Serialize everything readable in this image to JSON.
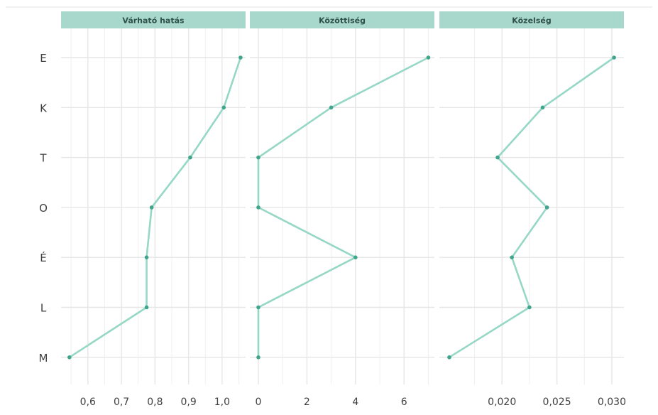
{
  "colors": {
    "strip_bg": "#a8d8cc",
    "line": "#96d7c6",
    "point": "#3fa58c",
    "grid": "#e6e6e6",
    "tick_text": "#404040",
    "strip_text": "#2f4f4a"
  },
  "chart_data": {
    "type": "line",
    "layout": "facet-columns",
    "categories": [
      "E",
      "K",
      "T",
      "O",
      "É",
      "L",
      "M"
    ],
    "grid": true,
    "facets": [
      {
        "title": "Várható hatás",
        "xlim": [
          0.52,
          1.07
        ],
        "xticks": [
          0.6,
          0.7,
          0.8,
          0.9,
          1.0
        ],
        "xtick_labels": [
          "0,6",
          "0,7",
          "0,8",
          "0,9",
          "1,0"
        ],
        "values": [
          1.055,
          1.005,
          0.905,
          0.79,
          0.775,
          0.775,
          0.545
        ]
      },
      {
        "title": "Közöttiség",
        "xlim": [
          -0.35,
          7.25
        ],
        "xticks": [
          0,
          2,
          4,
          6
        ],
        "xtick_labels": [
          "0",
          "2",
          "4",
          "6"
        ],
        "values": [
          7,
          3,
          0,
          0,
          4,
          0,
          0
        ]
      },
      {
        "title": "Közelség",
        "xlim": [
          0.0143,
          0.0311
        ],
        "xticks": [
          0.02,
          0.025,
          0.03
        ],
        "xtick_labels": [
          "0,020",
          "0,025",
          "0,030"
        ],
        "values": [
          0.0302,
          0.0237,
          0.0196,
          0.0241,
          0.0209,
          0.0225,
          0.0152
        ]
      }
    ]
  }
}
